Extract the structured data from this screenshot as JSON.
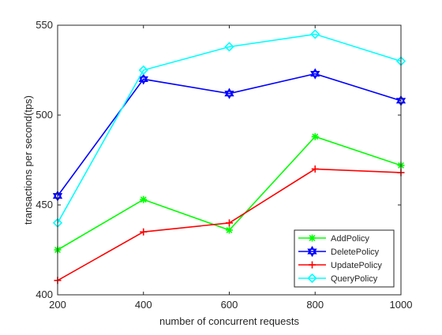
{
  "chart_data": {
    "type": "line",
    "title": "",
    "xlabel": "number of concurrent requests",
    "ylabel": "transactions per second(tps)",
    "x": [
      200,
      400,
      600,
      800,
      1000
    ],
    "xlim": [
      200,
      1000
    ],
    "ylim": [
      400,
      550
    ],
    "xticks": [
      "200",
      "400",
      "600",
      "800",
      "1000"
    ],
    "yticks": [
      "400",
      "450",
      "500",
      "550"
    ],
    "xtick_values": [
      200,
      400,
      600,
      800,
      1000
    ],
    "ytick_values": [
      400,
      450,
      500,
      550
    ],
    "grid": false,
    "legend_position": "bottom-right",
    "series": [
      {
        "name": "AddPolicy",
        "color": "#00ff00",
        "marker": "asterisk",
        "values": [
          425,
          453,
          436,
          488,
          472
        ]
      },
      {
        "name": "DeletePolicy",
        "color": "#0000ff",
        "marker": "hexagram",
        "values": [
          455,
          520,
          512,
          523,
          508
        ]
      },
      {
        "name": "UpdatePolicy",
        "color": "#ff0000",
        "marker": "plus",
        "values": [
          408,
          435,
          440,
          470,
          468
        ]
      },
      {
        "name": "QueryPolicy",
        "color": "#00ffff",
        "marker": "diamond",
        "values": [
          440,
          525,
          538,
          545,
          530
        ]
      }
    ]
  }
}
